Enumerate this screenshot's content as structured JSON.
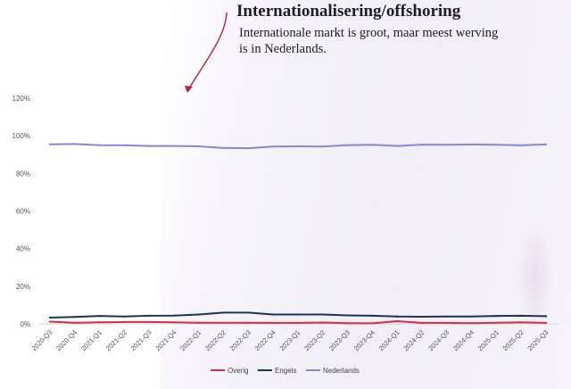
{
  "annotation": {
    "title": "Internationalisering/offshoring",
    "text": "Internationale markt is groot, maar meest werving is in Nederlands.",
    "arrow_color": "#c0203a"
  },
  "chart_data": {
    "type": "line",
    "title": "",
    "xlabel": "",
    "ylabel": "",
    "categories": [
      "2020-Q3",
      "2020-Q4",
      "2021-Q1",
      "2021-Q2",
      "2021-Q3",
      "2021-Q4",
      "2022-Q1",
      "2022-Q2",
      "2022-Q3",
      "2022-Q4",
      "2023-Q1",
      "2023-Q2",
      "2023-Q3",
      "2023-Q4",
      "2024-Q1",
      "2024-Q2",
      "2024-Q3",
      "2024-Q4",
      "2025-Q1",
      "2025-Q2",
      "2025-Q3"
    ],
    "y_ticks": [
      "0%",
      "20%",
      "40%",
      "60%",
      "80%",
      "100%",
      "120%"
    ],
    "ylim": [
      0,
      120
    ],
    "grid": false,
    "legend_position": "bottom",
    "series": [
      {
        "name": "Overig",
        "color": "#d62e4a",
        "values": [
          1.2,
          0.6,
          0.8,
          1.0,
          1.0,
          0.8,
          0.6,
          0.6,
          0.6,
          0.5,
          0.5,
          0.7,
          0.4,
          0.3,
          1.4,
          0.5,
          0.5,
          0.4,
          0.6,
          0.8,
          0.5
        ]
      },
      {
        "name": "Engels",
        "color": "#1c3552",
        "values": [
          3.3,
          3.7,
          4.2,
          3.9,
          4.3,
          4.4,
          5.0,
          6.0,
          6.0,
          5.0,
          5.0,
          5.0,
          4.5,
          4.3,
          3.9,
          3.8,
          3.9,
          3.9,
          4.2,
          4.3,
          4.1
        ]
      },
      {
        "name": "Nederlands",
        "color": "#8a86dd",
        "values": [
          95.5,
          95.6,
          95.0,
          94.9,
          94.6,
          94.6,
          94.4,
          93.5,
          93.4,
          94.3,
          94.4,
          94.3,
          95.0,
          95.2,
          94.6,
          95.3,
          95.2,
          95.4,
          95.2,
          94.9,
          95.4
        ]
      }
    ]
  }
}
